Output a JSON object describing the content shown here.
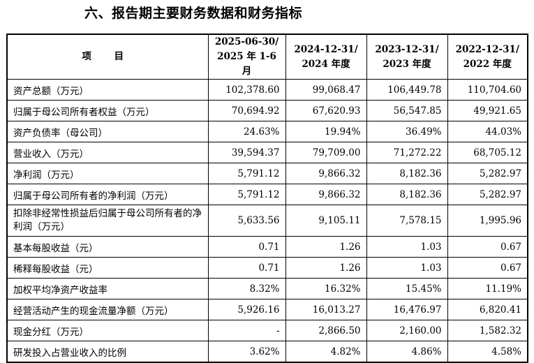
{
  "title": "六、报告期主要财务数据和财务指标",
  "header": {
    "item": "项 目",
    "cols": [
      {
        "line1": "2025-06-30/",
        "line2": "2025 年 1-6 月"
      },
      {
        "line1": "2024-12-31/",
        "line2": "2024 年度"
      },
      {
        "line1": "2023-12-31/",
        "line2": "2023 年度"
      },
      {
        "line1": "2022-12-31/",
        "line2": "2022 年度"
      }
    ]
  },
  "rows": [
    {
      "label": "资产总额（万元）",
      "values": [
        "102,378.60",
        "99,068.47",
        "106,449.78",
        "110,704.60"
      ]
    },
    {
      "label": "归属于母公司所有者权益（万元）",
      "values": [
        "70,694.92",
        "67,620.93",
        "56,547.85",
        "49,921.65"
      ]
    },
    {
      "label": "资产负债率（母公司）",
      "values": [
        "24.63%",
        "19.94%",
        "36.49%",
        "44.03%"
      ]
    },
    {
      "label": "营业收入（万元）",
      "values": [
        "39,594.37",
        "79,709.00",
        "71,272.22",
        "68,705.12"
      ]
    },
    {
      "label": "净利润（万元）",
      "values": [
        "5,791.12",
        "9,866.32",
        "8,182.36",
        "5,282.97"
      ]
    },
    {
      "label": "归属于母公司所有者的净利润（万元）",
      "values": [
        "5,791.12",
        "9,866.32",
        "8,182.36",
        "5,282.97"
      ]
    },
    {
      "label": "扣除非经常性损益后归属于母公司所有者的净利润（万元）",
      "values": [
        "5,633.56",
        "9,105.11",
        "7,578.15",
        "1,995.96"
      ]
    },
    {
      "label": "基本每股收益（元）",
      "values": [
        "0.71",
        "1.26",
        "1.03",
        "0.67"
      ]
    },
    {
      "label": "稀释每股收益（元）",
      "values": [
        "0.71",
        "1.26",
        "1.03",
        "0.67"
      ]
    },
    {
      "label": "加权平均净资产收益率",
      "values": [
        "8.32%",
        "16.32%",
        "15.45%",
        "11.19%"
      ]
    },
    {
      "label": "经营活动产生的现金流量净额（万元）",
      "values": [
        "5,926.16",
        "16,013.27",
        "16,476.97",
        "6,820.41"
      ]
    },
    {
      "label": "现金分红（万元）",
      "values": [
        "-",
        "2,866.50",
        "2,160.00",
        "1,582.32"
      ]
    },
    {
      "label": "研发投入占营业收入的比例",
      "values": [
        "3.62%",
        "4.82%",
        "4.86%",
        "4.58%"
      ]
    }
  ]
}
